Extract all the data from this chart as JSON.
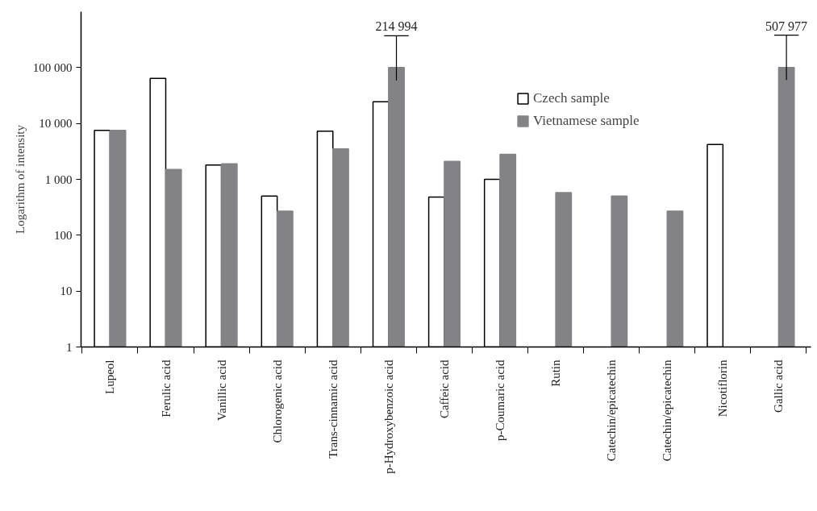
{
  "chart_data": {
    "type": "bar",
    "ylabel": "Logarithm of intensity",
    "categories": [
      "Lupeol",
      "Ferulic acid",
      "Vanillic acid",
      "Chlorogenic acid",
      "Trans-cinnamic acid",
      "p-Hydroxybenzoic acid",
      "Caffeic acid",
      "p-Coumaric acid",
      "Rutin",
      "Catechin/epicatechin",
      "Catechin/epicatechin",
      "Nicotiflorin",
      "Gallic acid"
    ],
    "series": [
      {
        "name": "Czech sample",
        "color": "#ffffff",
        "values": [
          7500,
          64000,
          1800,
          500,
          7300,
          24500,
          480,
          1000,
          null,
          null,
          null,
          4200,
          null
        ]
      },
      {
        "name": "Vietnamese sample",
        "color": "#838387",
        "values": [
          7500,
          1500,
          1900,
          270,
          3500,
          100000,
          2100,
          2800,
          580,
          500,
          270,
          null,
          100000
        ],
        "errors": [
          null,
          null,
          null,
          null,
          null,
          [
            59000,
            370000
          ],
          null,
          null,
          null,
          null,
          null,
          null,
          [
            60000,
            380000
          ]
        ]
      }
    ],
    "annotations": [
      "214 994",
      "507 977"
    ],
    "log": "y",
    "ylim": [
      1,
      1000000
    ],
    "yticks": [
      1,
      10,
      100,
      {
        "value": 1000,
        "label": "1 000"
      },
      {
        "value": 10000,
        "label": "10 000"
      },
      {
        "value": 100000,
        "label": "100 000"
      }
    ],
    "legend": "top right",
    "grid": false
  }
}
